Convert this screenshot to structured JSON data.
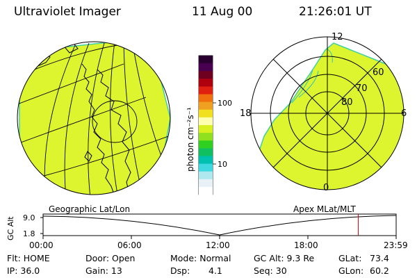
{
  "header": {
    "instrument": "Ultraviolet Imager",
    "date": "11 Aug 00",
    "time": "21:26:01 UT"
  },
  "panels": {
    "left_label": "Geographic Lat/Lon",
    "right_label": "Apex MLat/MLT"
  },
  "colorbar": {
    "unit_label": "photon cm⁻²s⁻¹",
    "tick_100": "100",
    "tick_10": "10",
    "colors_top_to_bottom": [
      "#2a0030",
      "#4a0050",
      "#700020",
      "#b00010",
      "#e02010",
      "#f07010",
      "#f0a020",
      "#f0e020",
      "#ffffb0",
      "#d8f020",
      "#90e020",
      "#30d020",
      "#10c060",
      "#00c0b0",
      "#40d8e0",
      "#b0e8f0",
      "#e8f0f8",
      "#ffffff"
    ]
  },
  "polar": {
    "mlt_12": "12",
    "mlt_18": "18",
    "mlt_6": "6",
    "mlt_0": "0",
    "mlat_60": "60",
    "mlat_70": "70",
    "mlat_80": "80"
  },
  "altitude_plot": {
    "ylabel": "GC Alt",
    "ytick_top": "9.0",
    "ytick_bottom": "1.8",
    "xticks": [
      "00:00",
      "06:00",
      "12:00",
      "18:00",
      "23:59"
    ],
    "current_time_fraction": 0.893
  },
  "info": {
    "flt": "Flt: HOME",
    "ip": "IP: 36.0",
    "door": "Door: Open",
    "gain": "Gain: 13",
    "mode": "Mode: Normal",
    "dsp_label": "Dsp:",
    "dsp_value": "4.1",
    "gc_alt": "GC Alt: 9.3 Re",
    "seq": "Seq: 30",
    "glat_label": "GLat:",
    "glat_value": "73.4",
    "glon_label": "GLon:",
    "glon_value": "60.2"
  },
  "colors": {
    "fill": "#ddf52e",
    "rim": "#40d0a0",
    "marker": "#c00000"
  }
}
